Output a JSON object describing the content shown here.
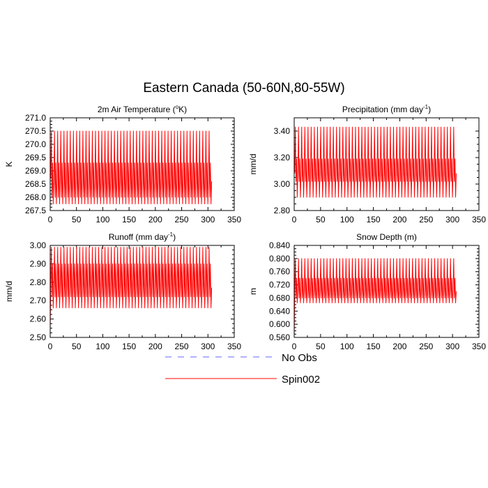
{
  "title": "Eastern Canada (50-60N,80-55W)",
  "legend": {
    "placement": "bottom-center",
    "entries": [
      {
        "label": "No Obs",
        "color": "#6666ff",
        "dash": true
      },
      {
        "label": "Spin002",
        "color": "#ff0000",
        "dash": false
      }
    ]
  },
  "chart_data": [
    {
      "type": "line",
      "title_parts": [
        "2m Air Temperature (",
        "o",
        "K)"
      ],
      "ylabel": "K",
      "xlim": [
        0,
        350
      ],
      "xticks": [
        0,
        50,
        100,
        150,
        200,
        250,
        300,
        350
      ],
      "ylim": [
        267.5,
        271.0
      ],
      "yticks": [
        "267.5",
        "268.0",
        "268.5",
        "269.0",
        "269.5",
        "270.0",
        "270.5",
        "271.0"
      ],
      "series": [
        {
          "name": "Spin002",
          "color": "#ff0000",
          "cycles": 51,
          "x_start": 1,
          "x_end": 307,
          "pattern": [
            268.7,
            270.5,
            268.0,
            269.3,
            267.75,
            268.6
          ]
        }
      ]
    },
    {
      "type": "line",
      "title_parts": [
        "Precipitation (mm day",
        "-1",
        ")"
      ],
      "ylabel": "mm/d",
      "xlim": [
        0,
        350
      ],
      "xticks": [
        0,
        50,
        100,
        150,
        200,
        250,
        300,
        350
      ],
      "ylim": [
        2.8,
        3.5
      ],
      "yticks": [
        "2.80",
        "3.00",
        "3.20",
        "3.40"
      ],
      "series": [
        {
          "name": "Spin002",
          "color": "#ff0000",
          "cycles": 51,
          "x_start": 1,
          "x_end": 307,
          "pattern": [
            3.08,
            3.43,
            3.02,
            3.19,
            2.9,
            3.08
          ]
        }
      ]
    },
    {
      "type": "line",
      "title_parts": [
        "Runoff (mm day",
        "-1",
        ")"
      ],
      "ylabel": "mm/d",
      "xlim": [
        0,
        350
      ],
      "xticks": [
        0,
        50,
        100,
        150,
        200,
        250,
        300,
        350
      ],
      "ylim": [
        2.5,
        3.0
      ],
      "yticks": [
        "2.50",
        "2.60",
        "2.70",
        "2.80",
        "2.90",
        "3.00"
      ],
      "series": [
        {
          "name": "Spin002",
          "color": "#ff0000",
          "cycles": 51,
          "x_start": 1,
          "x_end": 307,
          "start_value": 2.55,
          "pattern": [
            2.77,
            2.99,
            2.72,
            2.9,
            2.66,
            2.77
          ]
        }
      ]
    },
    {
      "type": "line",
      "title_parts": [
        "Snow Depth (m)"
      ],
      "ylabel": "m",
      "xlim": [
        0,
        350
      ],
      "xticks": [
        0,
        50,
        100,
        150,
        200,
        250,
        300,
        350
      ],
      "ylim": [
        0.56,
        0.84
      ],
      "yticks": [
        "0.560",
        "0.600",
        "0.640",
        "0.680",
        "0.720",
        "0.760",
        "0.800",
        "0.840"
      ],
      "series": [
        {
          "name": "Spin002",
          "color": "#ff0000",
          "cycles": 51,
          "x_start": 1,
          "x_end": 307,
          "start_value": 0.57,
          "pattern": [
            0.7,
            0.8,
            0.68,
            0.74,
            0.665,
            0.7
          ]
        }
      ]
    }
  ]
}
